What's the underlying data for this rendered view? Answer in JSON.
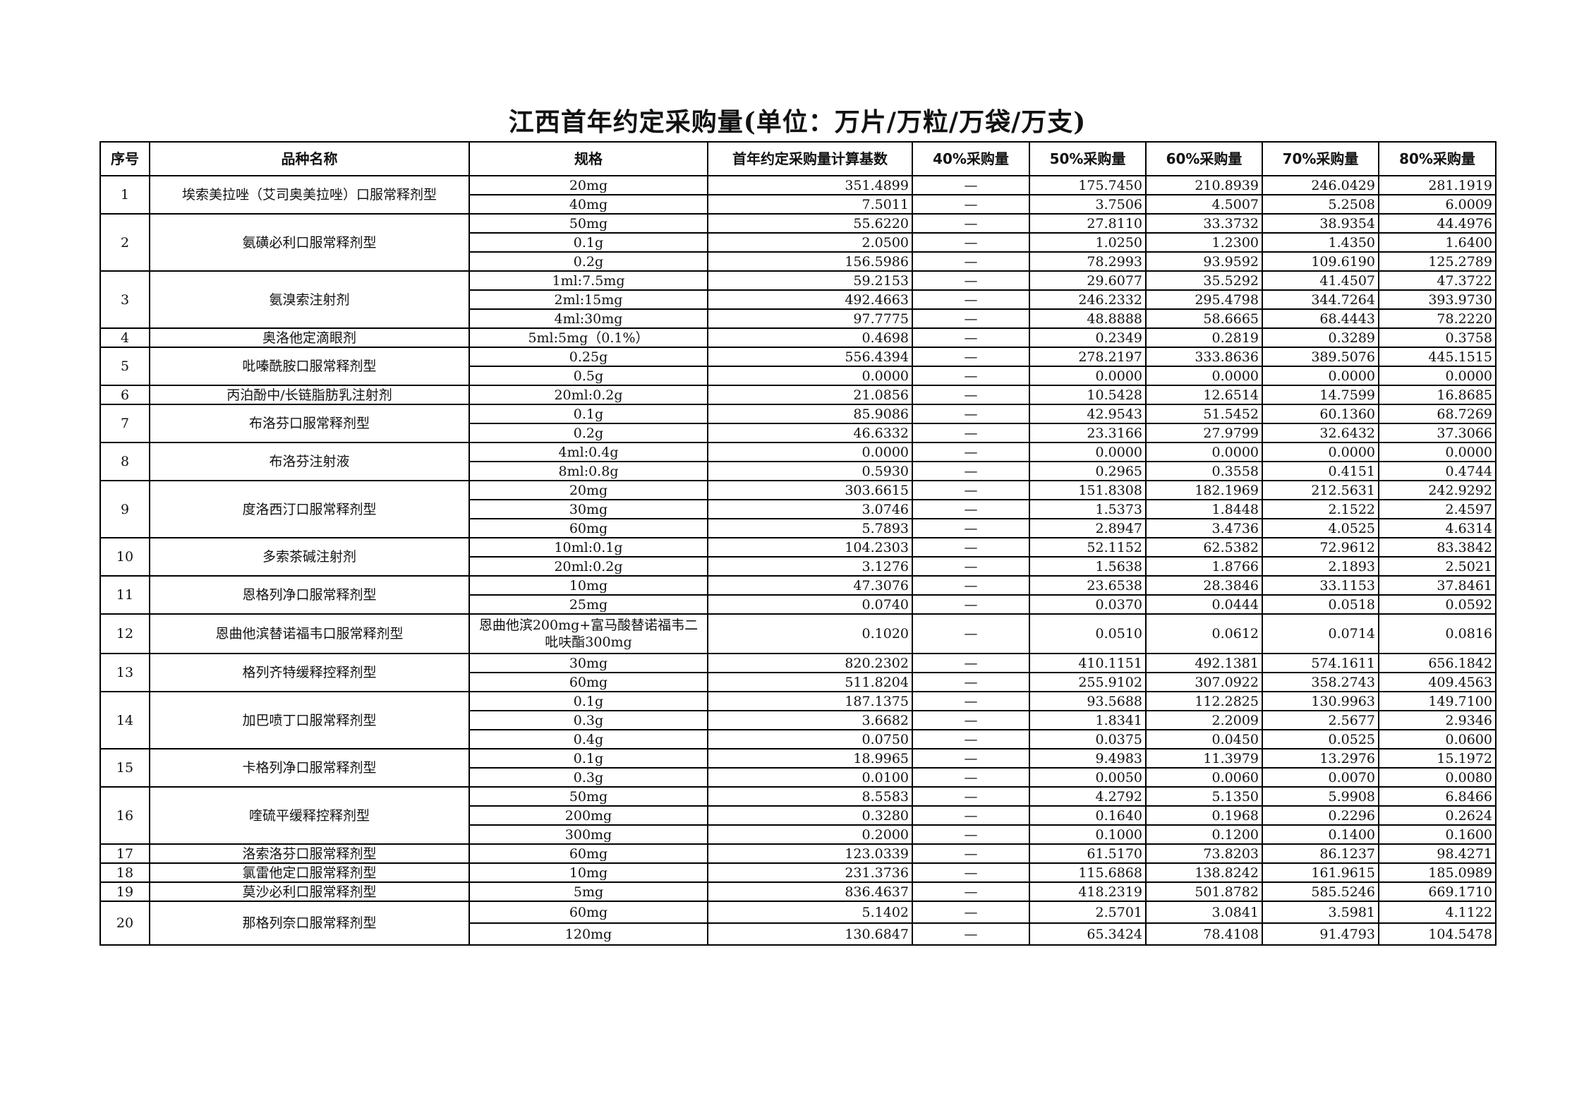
{
  "title": "江西首年约定采购量(单位：万片/万粒/万袋/万支)",
  "headers": [
    "序号",
    "品种名称",
    "规格",
    "首年约定采购量计算基数",
    "40%采购量",
    "50%采购量",
    "60%采购量",
    "70%采购量",
    "80%采购量"
  ],
  "items": [
    {
      "no": "1",
      "name": "埃索美拉唑（艾司奥美拉唑）口服常释剂型",
      "specs": [
        [
          "20mg",
          "351.4899",
          "—",
          "175.7450",
          "210.8939",
          "246.0429",
          "281.1919"
        ],
        [
          "40mg",
          "7.5011",
          "—",
          "3.7506",
          "4.5007",
          "5.2508",
          "6.0009"
        ]
      ]
    },
    {
      "no": "2",
      "name": "氨磺必利口服常释剂型",
      "specs": [
        [
          "50mg",
          "55.6220",
          "—",
          "27.8110",
          "33.3732",
          "38.9354",
          "44.4976"
        ],
        [
          "0.1g",
          "2.0500",
          "—",
          "1.0250",
          "1.2300",
          "1.4350",
          "1.6400"
        ],
        [
          "0.2g",
          "156.5986",
          "—",
          "78.2993",
          "93.9592",
          "109.6190",
          "125.2789"
        ]
      ]
    },
    {
      "no": "3",
      "name": "氨溴索注射剂",
      "specs": [
        [
          "1ml:7.5mg",
          "59.2153",
          "—",
          "29.6077",
          "35.5292",
          "41.4507",
          "47.3722"
        ],
        [
          "2ml:15mg",
          "492.4663",
          "—",
          "246.2332",
          "295.4798",
          "344.7264",
          "393.9730"
        ],
        [
          "4ml:30mg",
          "97.7775",
          "—",
          "48.8888",
          "58.6665",
          "68.4443",
          "78.2220"
        ]
      ]
    },
    {
      "no": "4",
      "name": "奥洛他定滴眼剂",
      "specs": [
        [
          "5ml:5mg（0.1%）",
          "0.4698",
          "—",
          "0.2349",
          "0.2819",
          "0.3289",
          "0.3758"
        ]
      ]
    },
    {
      "no": "5",
      "name": "吡嗪酰胺口服常释剂型",
      "specs": [
        [
          "0.25g",
          "556.4394",
          "—",
          "278.2197",
          "333.8636",
          "389.5076",
          "445.1515"
        ],
        [
          "0.5g",
          "0.0000",
          "—",
          "0.0000",
          "0.0000",
          "0.0000",
          "0.0000"
        ]
      ]
    },
    {
      "no": "6",
      "name": "丙泊酚中/长链脂肪乳注射剂",
      "specs": [
        [
          "20ml:0.2g",
          "21.0856",
          "—",
          "10.5428",
          "12.6514",
          "14.7599",
          "16.8685"
        ]
      ]
    },
    {
      "no": "7",
      "name": "布洛芬口服常释剂型",
      "specs": [
        [
          "0.1g",
          "85.9086",
          "—",
          "42.9543",
          "51.5452",
          "60.1360",
          "68.7269"
        ],
        [
          "0.2g",
          "46.6332",
          "—",
          "23.3166",
          "27.9799",
          "32.6432",
          "37.3066"
        ]
      ]
    },
    {
      "no": "8",
      "name": "布洛芬注射液",
      "specs": [
        [
          "4ml:0.4g",
          "0.0000",
          "—",
          "0.0000",
          "0.0000",
          "0.0000",
          "0.0000"
        ],
        [
          "8ml:0.8g",
          "0.5930",
          "—",
          "0.2965",
          "0.3558",
          "0.4151",
          "0.4744"
        ]
      ]
    },
    {
      "no": "9",
      "name": "度洛西汀口服常释剂型",
      "specs": [
        [
          "20mg",
          "303.6615",
          "—",
          "151.8308",
          "182.1969",
          "212.5631",
          "242.9292"
        ],
        [
          "30mg",
          "3.0746",
          "—",
          "1.5373",
          "1.8448",
          "2.1522",
          "2.4597"
        ],
        [
          "60mg",
          "5.7893",
          "—",
          "2.8947",
          "3.4736",
          "4.0525",
          "4.6314"
        ]
      ]
    },
    {
      "no": "10",
      "name": "多索茶碱注射剂",
      "specs": [
        [
          "10ml:0.1g",
          "104.2303",
          "—",
          "52.1152",
          "62.5382",
          "72.9612",
          "83.3842"
        ],
        [
          "20ml:0.2g",
          "3.1276",
          "—",
          "1.5638",
          "1.8766",
          "2.1893",
          "2.5021"
        ]
      ]
    },
    {
      "no": "11",
      "name": "恩格列净口服常释剂型",
      "specs": [
        [
          "10mg",
          "47.3076",
          "—",
          "23.6538",
          "28.3846",
          "33.1153",
          "37.8461"
        ],
        [
          "25mg",
          "0.0740",
          "—",
          "0.0370",
          "0.0444",
          "0.0518",
          "0.0592"
        ]
      ]
    },
    {
      "no": "12",
      "name": "恩曲他滨替诺福韦口服常释剂型",
      "specs": [
        [
          "恩曲他滨200mg+富马酸替诺福韦二吡呋酯300mg",
          "0.1020",
          "—",
          "0.0510",
          "0.0612",
          "0.0714",
          "0.0816"
        ]
      ]
    },
    {
      "no": "13",
      "name": "格列齐特缓释控释剂型",
      "specs": [
        [
          "30mg",
          "820.2302",
          "—",
          "410.1151",
          "492.1381",
          "574.1611",
          "656.1842"
        ],
        [
          "60mg",
          "511.8204",
          "—",
          "255.9102",
          "307.0922",
          "358.2743",
          "409.4563"
        ]
      ]
    },
    {
      "no": "14",
      "name": "加巴喷丁口服常释剂型",
      "specs": [
        [
          "0.1g",
          "187.1375",
          "—",
          "93.5688",
          "112.2825",
          "130.9963",
          "149.7100"
        ],
        [
          "0.3g",
          "3.6682",
          "—",
          "1.8341",
          "2.2009",
          "2.5677",
          "2.9346"
        ],
        [
          "0.4g",
          "0.0750",
          "—",
          "0.0375",
          "0.0450",
          "0.0525",
          "0.0600"
        ]
      ]
    },
    {
      "no": "15",
      "name": "卡格列净口服常释剂型",
      "specs": [
        [
          "0.1g",
          "18.9965",
          "—",
          "9.4983",
          "11.3979",
          "13.2976",
          "15.1972"
        ],
        [
          "0.3g",
          "0.0100",
          "—",
          "0.0050",
          "0.0060",
          "0.0070",
          "0.0080"
        ]
      ]
    },
    {
      "no": "16",
      "name": "喹硫平缓释控释剂型",
      "specs": [
        [
          "50mg",
          "8.5583",
          "—",
          "4.2792",
          "5.1350",
          "5.9908",
          "6.8466"
        ],
        [
          "200mg",
          "0.3280",
          "—",
          "0.1640",
          "0.1968",
          "0.2296",
          "0.2624"
        ],
        [
          "300mg",
          "0.2000",
          "—",
          "0.1000",
          "0.1200",
          "0.1400",
          "0.1600"
        ]
      ]
    },
    {
      "no": "17",
      "name": "洛索洛芬口服常释剂型",
      "specs": [
        [
          "60mg",
          "123.0339",
          "—",
          "61.5170",
          "73.8203",
          "86.1237",
          "98.4271"
        ]
      ]
    },
    {
      "no": "18",
      "name": "氯雷他定口服常释剂型",
      "specs": [
        [
          "10mg",
          "231.3736",
          "—",
          "115.6868",
          "138.8242",
          "161.9615",
          "185.0989"
        ]
      ]
    },
    {
      "no": "19",
      "name": "莫沙必利口服常释剂型",
      "specs": [
        [
          "5mg",
          "836.4637",
          "—",
          "418.2319",
          "501.8782",
          "585.5246",
          "669.1710"
        ]
      ]
    },
    {
      "no": "20",
      "name": "那格列奈口服常释剂型",
      "specs": [
        [
          "60mg",
          "5.1402",
          "—",
          "2.5701",
          "3.0841",
          "3.5981",
          "4.1122"
        ],
        [
          "120mg",
          "130.6847",
          "—",
          "65.3424",
          "78.4108",
          "91.4793",
          "104.5478"
        ]
      ]
    }
  ]
}
